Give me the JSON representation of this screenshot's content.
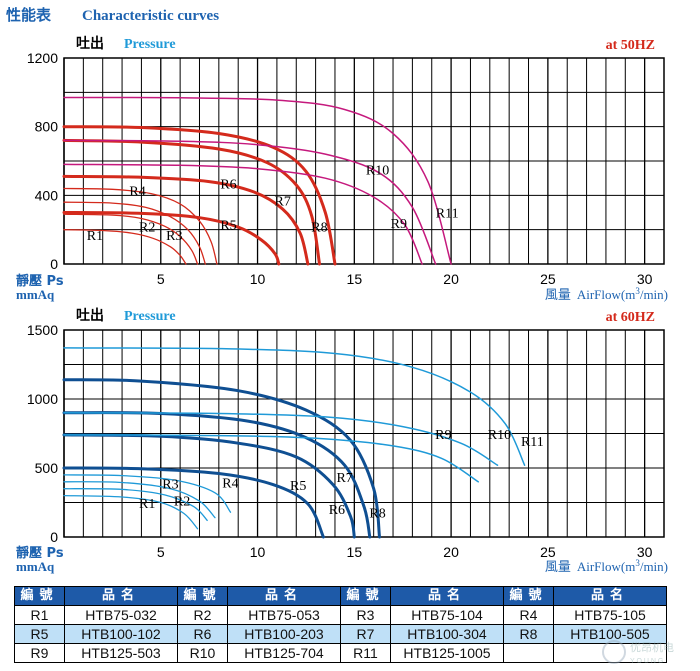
{
  "title_cn": "性能表",
  "title_en": "Characteristic curves",
  "ylabel_cn": "靜壓 Ps",
  "ylabel_unit": "mmAq",
  "xlabel_cn": "風量",
  "xlabel_en": "AirFlow(m",
  "xlabel_sup": "3",
  "xlabel_end": "/min)",
  "colors": {
    "title": "#1e63b0",
    "red": "#d42a1c",
    "magenta": "#c5197d",
    "dark_blue": "#0f4f92",
    "light_blue": "#1f9ad8",
    "table_header": "#1e5aa8",
    "table_alt": "#bfe0f7"
  },
  "chart_data": [
    {
      "type": "line",
      "freq_label": "at  50HZ",
      "pressure_cn": "吐出",
      "pressure_en": "Pressure",
      "xlim": [
        0,
        31
      ],
      "ylim": [
        0,
        1200
      ],
      "x_ticks": [
        5,
        10,
        15,
        20,
        25,
        30
      ],
      "y_ticks": [
        0,
        400,
        800,
        1200
      ],
      "grid": true,
      "series": [
        {
          "name": "R1",
          "color": "#d42a1c",
          "width": 1.3,
          "label_at": [
            1.6,
            140
          ],
          "points": [
            [
              0,
              200
            ],
            [
              2,
              195
            ],
            [
              3.5,
              180
            ],
            [
              4.6,
              150
            ],
            [
              5.5,
              100
            ],
            [
              6,
              50
            ],
            [
              6.3,
              0
            ]
          ]
        },
        {
          "name": "R2",
          "color": "#d42a1c",
          "width": 1.3,
          "label_at": [
            4.3,
            190
          ],
          "points": [
            [
              0,
              290
            ],
            [
              2.5,
              285
            ],
            [
              4,
              265
            ],
            [
              5.2,
              220
            ],
            [
              6,
              160
            ],
            [
              6.6,
              80
            ],
            [
              6.9,
              0
            ]
          ]
        },
        {
          "name": "R3",
          "color": "#d42a1c",
          "width": 1.3,
          "label_at": [
            5.7,
            140
          ],
          "points": [
            [
              0,
              360
            ],
            [
              2.5,
              355
            ],
            [
              4.2,
              330
            ],
            [
              5.5,
              275
            ],
            [
              6.4,
              200
            ],
            [
              7,
              100
            ],
            [
              7.3,
              0
            ]
          ]
        },
        {
          "name": "R4",
          "color": "#d42a1c",
          "width": 1.3,
          "label_at": [
            3.8,
            400
          ],
          "points": [
            [
              0,
              440
            ],
            [
              2.5,
              435
            ],
            [
              4.5,
              410
            ],
            [
              6,
              350
            ],
            [
              7,
              250
            ],
            [
              7.6,
              130
            ],
            [
              7.9,
              0
            ]
          ]
        },
        {
          "name": "R5",
          "color": "#d42a1c",
          "width": 3,
          "label_at": [
            8.5,
            200
          ],
          "points": [
            [
              0,
              300
            ],
            [
              4,
              295
            ],
            [
              7,
              270
            ],
            [
              9,
              215
            ],
            [
              10.2,
              140
            ],
            [
              10.9,
              60
            ],
            [
              11.1,
              0
            ]
          ]
        },
        {
          "name": "R6",
          "color": "#d42a1c",
          "width": 3,
          "label_at": [
            8.5,
            440
          ],
          "points": [
            [
              0,
              510
            ],
            [
              4,
              505
            ],
            [
              7.5,
              480
            ],
            [
              9.8,
              420
            ],
            [
              11.3,
              320
            ],
            [
              12.2,
              180
            ],
            [
              12.6,
              0
            ]
          ]
        },
        {
          "name": "R7",
          "color": "#d42a1c",
          "width": 3,
          "label_at": [
            11.3,
            340
          ],
          "points": [
            [
              0,
              720
            ],
            [
              4,
              710
            ],
            [
              8,
              670
            ],
            [
              10.5,
              590
            ],
            [
              12,
              460
            ],
            [
              12.8,
              280
            ],
            [
              13.2,
              0
            ]
          ]
        },
        {
          "name": "R8",
          "color": "#d42a1c",
          "width": 3,
          "label_at": [
            13.2,
            190
          ],
          "points": [
            [
              0,
              800
            ],
            [
              4,
              795
            ],
            [
              8,
              760
            ],
            [
              10.8,
              680
            ],
            [
              12.5,
              540
            ],
            [
              13.5,
              300
            ],
            [
              14,
              0
            ]
          ]
        },
        {
          "name": "R9",
          "color": "#c5197d",
          "width": 1.5,
          "label_at": [
            17.3,
            210
          ],
          "points": [
            [
              0,
              580
            ],
            [
              6,
              575
            ],
            [
              10,
              555
            ],
            [
              13.5,
              500
            ],
            [
              16,
              390
            ],
            [
              17.6,
              230
            ],
            [
              18.5,
              0
            ]
          ]
        },
        {
          "name": "R10",
          "color": "#c5197d",
          "width": 1.5,
          "label_at": [
            16.2,
            520
          ],
          "points": [
            [
              0,
              720
            ],
            [
              6,
              715
            ],
            [
              10,
              695
            ],
            [
              13.5,
              640
            ],
            [
              16.3,
              530
            ],
            [
              18,
              330
            ],
            [
              19.2,
              0
            ]
          ]
        },
        {
          "name": "R11",
          "color": "#c5197d",
          "width": 1.5,
          "label_at": [
            19.8,
            270
          ],
          "points": [
            [
              0,
              970
            ],
            [
              6,
              968
            ],
            [
              11,
              955
            ],
            [
              14.5,
              900
            ],
            [
              17,
              760
            ],
            [
              18.8,
              480
            ],
            [
              20,
              0
            ]
          ]
        }
      ]
    },
    {
      "type": "line",
      "freq_label": "at  60HZ",
      "pressure_cn": "吐出",
      "pressure_en": "Pressure",
      "xlim": [
        0,
        31
      ],
      "ylim": [
        0,
        1500
      ],
      "x_ticks": [
        5,
        10,
        15,
        20,
        25,
        30
      ],
      "y_ticks": [
        0,
        500,
        1000,
        1500
      ],
      "grid": true,
      "series": [
        {
          "name": "R1",
          "color": "#1f9ad8",
          "width": 1.3,
          "label_at": [
            4.3,
            210
          ],
          "points": [
            [
              0,
              300
            ],
            [
              3,
              290
            ],
            [
              5,
              250
            ],
            [
              6.2,
              170
            ],
            [
              6.9,
              60
            ]
          ]
        },
        {
          "name": "R2",
          "color": "#1f9ad8",
          "width": 1.3,
          "label_at": [
            6.1,
            230
          ],
          "points": [
            [
              0,
              350
            ],
            [
              3,
              345
            ],
            [
              5.2,
              305
            ],
            [
              6.7,
              220
            ],
            [
              7.4,
              120
            ]
          ]
        },
        {
          "name": "R3",
          "color": "#1f9ad8",
          "width": 1.3,
          "label_at": [
            5.5,
            350
          ],
          "points": [
            [
              0,
              400
            ],
            [
              3,
              395
            ],
            [
              5.5,
              350
            ],
            [
              7,
              260
            ],
            [
              7.8,
              140
            ]
          ]
        },
        {
          "name": "R4",
          "color": "#1f9ad8",
          "width": 1.3,
          "label_at": [
            8.6,
            360
          ],
          "points": [
            [
              0,
              450
            ],
            [
              3,
              445
            ],
            [
              5.8,
              410
            ],
            [
              7.8,
              320
            ],
            [
              8.6,
              180
            ]
          ]
        },
        {
          "name": "R5",
          "color": "#0f4f92",
          "width": 3,
          "label_at": [
            12.1,
            340
          ],
          "points": [
            [
              0,
              500
            ],
            [
              4,
              495
            ],
            [
              8,
              460
            ],
            [
              10.8,
              380
            ],
            [
              12.6,
              240
            ],
            [
              13.4,
              0
            ]
          ]
        },
        {
          "name": "R6",
          "color": "#0f4f92",
          "width": 3,
          "label_at": [
            14.1,
            165
          ],
          "points": [
            [
              0,
              740
            ],
            [
              5,
              730
            ],
            [
              9,
              680
            ],
            [
              12,
              580
            ],
            [
              13.9,
              380
            ],
            [
              14.8,
              150
            ],
            [
              15,
              0
            ]
          ]
        },
        {
          "name": "R7",
          "color": "#0f4f92",
          "width": 3,
          "label_at": [
            14.5,
            400
          ],
          "points": [
            [
              0,
              900
            ],
            [
              5,
              895
            ],
            [
              9.5,
              840
            ],
            [
              12.5,
              720
            ],
            [
              14.5,
              520
            ],
            [
              15.5,
              220
            ],
            [
              15.8,
              0
            ]
          ]
        },
        {
          "name": "R8",
          "color": "#0f4f92",
          "width": 3,
          "label_at": [
            16.2,
            140
          ],
          "points": [
            [
              0,
              1140
            ],
            [
              4,
              1130
            ],
            [
              9,
              1060
            ],
            [
              12.5,
              920
            ],
            [
              14.8,
              700
            ],
            [
              16,
              350
            ],
            [
              16.3,
              0
            ]
          ]
        },
        {
          "name": "R9",
          "color": "#1f9ad8",
          "width": 1.5,
          "label_at": [
            19.6,
            710
          ],
          "points": [
            [
              0,
              740
            ],
            [
              8,
              735
            ],
            [
              13,
              715
            ],
            [
              17,
              660
            ],
            [
              19.5,
              570
            ],
            [
              21.4,
              400
            ]
          ]
        },
        {
          "name": "R10",
          "color": "#1f9ad8",
          "width": 1.5,
          "label_at": [
            22.5,
            710
          ],
          "points": [
            [
              0,
              900
            ],
            [
              8,
              895
            ],
            [
              13.5,
              870
            ],
            [
              17.5,
              800
            ],
            [
              20.5,
              680
            ],
            [
              22.4,
              520
            ]
          ]
        },
        {
          "name": "R11",
          "color": "#1f9ad8",
          "width": 1.5,
          "label_at": [
            24.2,
            660
          ],
          "points": [
            [
              0,
              1370
            ],
            [
              8,
              1365
            ],
            [
              14,
              1330
            ],
            [
              18,
              1230
            ],
            [
              21,
              1050
            ],
            [
              22.8,
              820
            ],
            [
              23.8,
              520
            ]
          ]
        }
      ]
    }
  ],
  "table": {
    "headers": [
      "編號",
      "品名",
      "編號",
      "品名",
      "編號",
      "品名",
      "編號",
      "品名"
    ],
    "rows": [
      [
        {
          "code": "R1",
          "name": "HTB75-032"
        },
        {
          "code": "R2",
          "name": "HTB75-053"
        },
        {
          "code": "R3",
          "name": "HTB75-104"
        },
        {
          "code": "R4",
          "name": "HTB75-105"
        }
      ],
      [
        {
          "code": "R5",
          "name": "HTB100-102"
        },
        {
          "code": "R6",
          "name": "HTB100-203"
        },
        {
          "code": "R7",
          "name": "HTB100-304"
        },
        {
          "code": "R8",
          "name": "HTB100-505"
        }
      ],
      [
        {
          "code": "R9",
          "name": "HTB125-503"
        },
        {
          "code": "R10",
          "name": "HTB125-704"
        },
        {
          "code": "R11",
          "name": "HTB125-1005"
        }
      ]
    ]
  },
  "watermark": {
    "cn": "优昂机电",
    "en": "Y O U N G"
  }
}
